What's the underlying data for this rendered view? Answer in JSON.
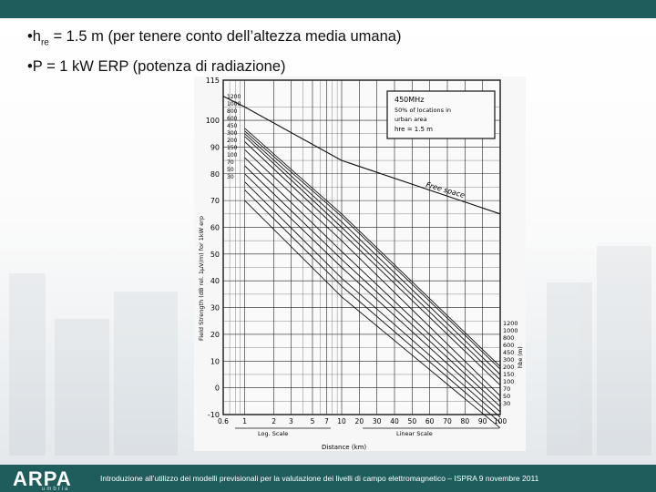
{
  "slide": {
    "bullet1": {
      "prefix": "•h",
      "sub": "re",
      "text": " = 1.5 m (per tenere conto dell’altezza media umana)"
    },
    "bullet2": "•P = 1 kW ERP (potenza di radiazione)"
  },
  "chart_data": {
    "type": "line",
    "xlabel": "Distance (km)",
    "ylabel": "Field Strength (dB rel. 1µV/m) for 1kW erp",
    "scale_labels": [
      "Log. Scale",
      "Linear Scale"
    ],
    "legend_box": [
      "450MHz",
      "50% of locations in",
      "urban area",
      "hre = 1.5 m"
    ],
    "free_space_label": "Free space",
    "hb_label": "hbe (m)",
    "y_ticks": [
      "115",
      "100",
      "90",
      "80",
      "70",
      "60",
      "50",
      "40",
      "30",
      "20",
      "10",
      "0",
      "-10"
    ],
    "x_ticks": [
      "0.6",
      "1",
      "2",
      "3",
      "5",
      "7",
      "10",
      "20",
      "30",
      "40",
      "50",
      "60",
      "70",
      "80",
      "90",
      "100"
    ],
    "left_heights": [
      "1200",
      "1000",
      "800",
      "600",
      "450",
      "300",
      "200",
      "150",
      "100",
      "70",
      "50",
      "30"
    ],
    "right_heights": [
      "1200",
      "1000",
      "800",
      "600",
      "450",
      "300",
      "200",
      "150",
      "100",
      "70",
      "50",
      "30"
    ],
    "series": [
      {
        "name": "1200",
        "x": [
          1,
          10,
          100
        ],
        "y": [
          97,
          65,
          8
        ]
      },
      {
        "name": "1000",
        "x": [
          1,
          10,
          100
        ],
        "y": [
          96,
          64,
          7
        ]
      },
      {
        "name": "800",
        "x": [
          1,
          10,
          100
        ],
        "y": [
          95,
          62,
          5
        ]
      },
      {
        "name": "600",
        "x": [
          1,
          10,
          100
        ],
        "y": [
          94,
          60,
          3
        ]
      },
      {
        "name": "450",
        "x": [
          1,
          10,
          100
        ],
        "y": [
          92,
          58,
          1
        ]
      },
      {
        "name": "300",
        "x": [
          1,
          10,
          100
        ],
        "y": [
          89,
          55,
          -3
        ]
      },
      {
        "name": "200",
        "x": [
          1,
          10,
          100
        ],
        "y": [
          86,
          51,
          -5
        ]
      },
      {
        "name": "150",
        "x": [
          1,
          10,
          100
        ],
        "y": [
          83,
          48,
          -7
        ]
      },
      {
        "name": "100",
        "x": [
          1,
          10,
          100
        ],
        "y": [
          80,
          45,
          -9
        ]
      },
      {
        "name": "70",
        "x": [
          1,
          10,
          100
        ],
        "y": [
          77,
          41,
          -11
        ]
      },
      {
        "name": "50",
        "x": [
          1,
          10,
          100
        ],
        "y": [
          74,
          38,
          -13
        ]
      },
      {
        "name": "30",
        "x": [
          1,
          10,
          100
        ],
        "y": [
          70,
          34,
          -15
        ]
      },
      {
        "name": "Free space",
        "x": [
          0.6,
          1,
          10,
          100
        ],
        "y": [
          109,
          105,
          85,
          65
        ]
      }
    ],
    "ylim": [
      -10,
      115
    ]
  },
  "footer": {
    "logo": "ARPA",
    "logo_sub": "umbria",
    "text": "Introduzione all’utilizzo dei modelli previsionali per la valutazione dei livelli di campo elettromagnetico – ISPRA 9 novembre 2011"
  }
}
